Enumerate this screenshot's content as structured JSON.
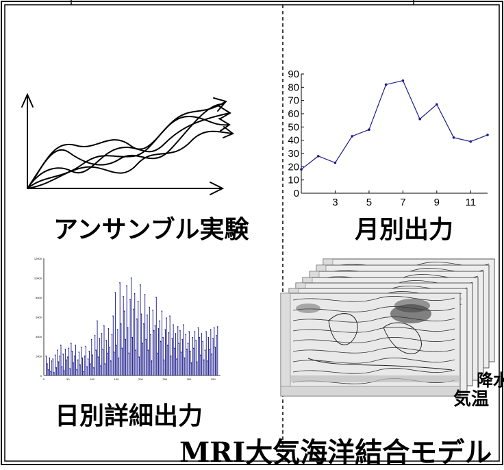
{
  "labels": {
    "ensemble": "アンサンブル実験",
    "monthly": "月別出力",
    "daily": "日別詳細出力",
    "precipitation": "降水",
    "temperature": "気温",
    "model_title_en": "MRI",
    "model_title_jp": "大気海洋結合モデル"
  },
  "colors": {
    "line": "#1a1a8c",
    "frame": "#000000"
  },
  "chart_data": [
    {
      "type": "line",
      "title": "",
      "xlabel": "",
      "ylabel": "",
      "x": [
        1,
        2,
        3,
        4,
        5,
        6,
        7,
        8,
        9,
        10,
        11,
        12
      ],
      "values": [
        18,
        28,
        23,
        43,
        48,
        82,
        85,
        56,
        67,
        42,
        39,
        44
      ],
      "xlim": [
        1,
        12
      ],
      "ylim": [
        0,
        90
      ],
      "xticks": [
        3,
        5,
        7,
        9,
        11
      ],
      "yticks": [
        0,
        10,
        20,
        30,
        40,
        50,
        60,
        70,
        80,
        90
      ],
      "grid": false
    },
    {
      "type": "bar",
      "title": "",
      "x_max": 365,
      "ylim": [
        0,
        12000
      ],
      "yticks": [
        0,
        2000,
        4000,
        6000,
        8000,
        10000,
        12000
      ],
      "xticks": [
        0,
        50,
        100,
        150,
        200,
        250,
        300,
        350
      ],
      "values": [
        2000,
        1200,
        600,
        1800,
        400,
        1500,
        1700,
        300,
        2100,
        800,
        2600,
        1400,
        2000,
        3100,
        900,
        2200,
        500,
        2700,
        1600,
        1900,
        2800,
        700,
        3300,
        2500,
        1300,
        2000,
        3100,
        600,
        1600,
        2400,
        1100,
        2900,
        1800,
        400,
        2000,
        3000,
        900,
        1700,
        2500,
        1200,
        3700,
        2100,
        800,
        4100,
        2600,
        5600,
        1900,
        3800,
        1000,
        4300,
        2700,
        5100,
        1200,
        3600,
        2300,
        4800,
        2900,
        1500,
        4200,
        6100,
        2400,
        8500,
        3100,
        4700,
        1800,
        9500,
        5300,
        2800,
        8100,
        6600,
        3700,
        9200,
        4900,
        2300,
        7800,
        10000,
        3900,
        6800,
        8400,
        2600,
        5800,
        7600,
        1900,
        9300,
        6300,
        3300,
        5300,
        8300,
        3700,
        6200,
        2600,
        7000,
        4200,
        1500,
        6700,
        4600,
        5100,
        8000,
        2300,
        4800,
        5600,
        3500,
        6600,
        3900,
        1600,
        4700,
        5900,
        3100,
        4400,
        6100,
        2000,
        3800,
        5200,
        2800,
        4300,
        1700,
        5000,
        3300,
        4600,
        2400,
        3700,
        5200,
        1800,
        4200,
        2700,
        3300,
        4500,
        2500,
        1300,
        3900,
        2800,
        4500,
        3600,
        1400,
        4900,
        3900,
        2100,
        4300,
        3500,
        1600,
        2600,
        4500,
        1500,
        3900,
        2700,
        4700,
        2200,
        3800,
        4900,
        2900,
        4100,
        5000
      ]
    }
  ]
}
